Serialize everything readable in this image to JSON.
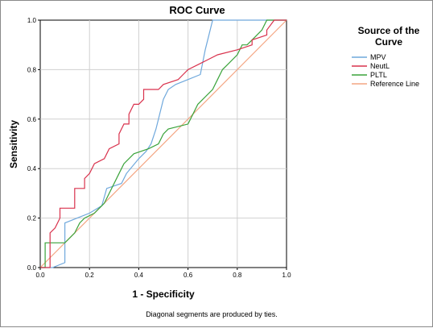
{
  "chart_data": {
    "type": "line",
    "title": "ROC Curve",
    "xlabel": "1 - Specificity",
    "ylabel": "Sensitivity",
    "xlim": [
      0,
      1
    ],
    "ylim": [
      0,
      1
    ],
    "x_ticks": [
      0.0,
      0.2,
      0.4,
      0.6,
      0.8,
      1.0
    ],
    "y_ticks": [
      0.0,
      0.2,
      0.4,
      0.6,
      0.8,
      1.0
    ],
    "x_tick_labels": [
      "0.0",
      "0.2",
      "0.4",
      "0.6",
      "0.8",
      "1.0"
    ],
    "y_tick_labels": [
      "0.0",
      "0.2",
      "0.4",
      "0.6",
      "0.8",
      "1.0"
    ],
    "grid": true,
    "legend": {
      "title": [
        "Source of the",
        "Curve"
      ],
      "position": "right"
    },
    "footnote": "Diagonal segments are produced by ties.",
    "series": [
      {
        "name": "MPV",
        "color": "#6fa8dc",
        "points": [
          [
            0,
            0
          ],
          [
            0.05,
            0
          ],
          [
            0.1,
            0.02
          ],
          [
            0.1,
            0.18
          ],
          [
            0.15,
            0.2
          ],
          [
            0.2,
            0.22
          ],
          [
            0.25,
            0.25
          ],
          [
            0.27,
            0.32
          ],
          [
            0.3,
            0.33
          ],
          [
            0.33,
            0.34
          ],
          [
            0.35,
            0.38
          ],
          [
            0.4,
            0.44
          ],
          [
            0.43,
            0.47
          ],
          [
            0.45,
            0.5
          ],
          [
            0.47,
            0.56
          ],
          [
            0.5,
            0.68
          ],
          [
            0.52,
            0.72
          ],
          [
            0.55,
            0.74
          ],
          [
            0.6,
            0.76
          ],
          [
            0.65,
            0.78
          ],
          [
            0.67,
            0.88
          ],
          [
            0.7,
            1.0
          ],
          [
            1.0,
            1.0
          ]
        ]
      },
      {
        "name": "NeutL",
        "color": "#d9324d",
        "points": [
          [
            0,
            0
          ],
          [
            0.04,
            0
          ],
          [
            0.04,
            0.14
          ],
          [
            0.06,
            0.16
          ],
          [
            0.08,
            0.2
          ],
          [
            0.08,
            0.24
          ],
          [
            0.14,
            0.24
          ],
          [
            0.14,
            0.32
          ],
          [
            0.18,
            0.32
          ],
          [
            0.18,
            0.36
          ],
          [
            0.2,
            0.38
          ],
          [
            0.22,
            0.42
          ],
          [
            0.26,
            0.44
          ],
          [
            0.28,
            0.48
          ],
          [
            0.32,
            0.5
          ],
          [
            0.32,
            0.54
          ],
          [
            0.34,
            0.58
          ],
          [
            0.36,
            0.58
          ],
          [
            0.36,
            0.62
          ],
          [
            0.38,
            0.66
          ],
          [
            0.4,
            0.66
          ],
          [
            0.42,
            0.68
          ],
          [
            0.42,
            0.72
          ],
          [
            0.48,
            0.72
          ],
          [
            0.5,
            0.74
          ],
          [
            0.56,
            0.76
          ],
          [
            0.58,
            0.78
          ],
          [
            0.6,
            0.8
          ],
          [
            0.64,
            0.82
          ],
          [
            0.68,
            0.84
          ],
          [
            0.72,
            0.86
          ],
          [
            0.8,
            0.88
          ],
          [
            0.86,
            0.9
          ],
          [
            0.86,
            0.92
          ],
          [
            0.92,
            0.94
          ],
          [
            0.92,
            0.96
          ],
          [
            0.95,
            1.0
          ],
          [
            1.0,
            1.0
          ]
        ]
      },
      {
        "name": "PLTL",
        "color": "#3aa33a",
        "points": [
          [
            0,
            0
          ],
          [
            0.02,
            0
          ],
          [
            0.02,
            0.1
          ],
          [
            0.1,
            0.1
          ],
          [
            0.14,
            0.14
          ],
          [
            0.16,
            0.18
          ],
          [
            0.18,
            0.2
          ],
          [
            0.22,
            0.22
          ],
          [
            0.26,
            0.26
          ],
          [
            0.28,
            0.3
          ],
          [
            0.32,
            0.38
          ],
          [
            0.34,
            0.42
          ],
          [
            0.38,
            0.46
          ],
          [
            0.44,
            0.48
          ],
          [
            0.48,
            0.5
          ],
          [
            0.5,
            0.54
          ],
          [
            0.52,
            0.56
          ],
          [
            0.6,
            0.58
          ],
          [
            0.62,
            0.62
          ],
          [
            0.64,
            0.66
          ],
          [
            0.66,
            0.68
          ],
          [
            0.7,
            0.72
          ],
          [
            0.72,
            0.76
          ],
          [
            0.74,
            0.8
          ],
          [
            0.76,
            0.82
          ],
          [
            0.8,
            0.86
          ],
          [
            0.82,
            0.9
          ],
          [
            0.84,
            0.9
          ],
          [
            0.86,
            0.92
          ],
          [
            0.88,
            0.94
          ],
          [
            0.9,
            0.96
          ],
          [
            0.92,
            1.0
          ],
          [
            1.0,
            1.0
          ]
        ]
      },
      {
        "name": "Reference Line",
        "color": "#f4a582",
        "points": [
          [
            0,
            0
          ],
          [
            1,
            1
          ]
        ]
      }
    ]
  }
}
